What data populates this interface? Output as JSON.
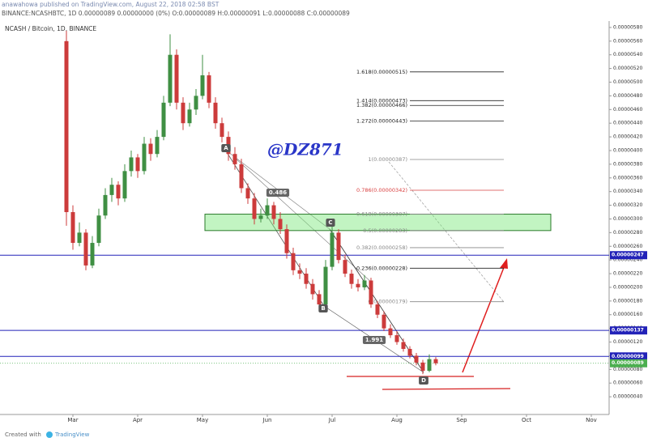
{
  "header": {
    "published": "anawahowa published on TradingView.com, August 22, 2018 02:58 BST",
    "ticker": "BINANCE:NCASHBTC, 1D 0.00000089 0.00000000 (0%) O:0.00000089 H:0.00000091 L:0.00000088 C:0.00000089"
  },
  "footer": {
    "created": "Created with",
    "brand": "TradingView"
  },
  "chart_data": {
    "type": "candlestick",
    "title": "NCASH / Bitcoin, 1D, BINANCE",
    "watermark": "@DZ871",
    "up_color": "#3f8f43",
    "down_color": "#cc3b3b",
    "categories": [
      null,
      "Mar",
      null,
      null,
      null,
      null,
      null,
      null,
      null,
      null,
      null,
      "Apr",
      null,
      null,
      null,
      null,
      null,
      null,
      null,
      null,
      null,
      "May",
      null,
      null,
      null,
      null,
      null,
      null,
      null,
      null,
      null,
      "Jun",
      null,
      null,
      null,
      null,
      null,
      null,
      null,
      null,
      null,
      "Jul",
      null,
      null,
      null,
      null,
      null,
      null,
      null,
      null,
      null,
      "Aug",
      null,
      null,
      null,
      null,
      null,
      null,
      null,
      null,
      null,
      "Sep",
      null,
      null,
      null,
      null,
      null,
      null,
      null,
      null,
      null,
      "Oct",
      null,
      null,
      null,
      null,
      null,
      null,
      null,
      null,
      null,
      "Nov",
      null,
      null
    ],
    "open": [
      5.6e-06,
      3.1e-06,
      2.65e-06,
      2.8e-06,
      2.32e-06,
      2.65e-06,
      3.05e-06,
      3.35e-06,
      3.5e-06,
      3.3e-06,
      3.7e-06,
      3.9e-06,
      3.7e-06,
      4.1e-06,
      3.95e-06,
      4.2e-06,
      4.7e-06,
      5.4e-06,
      4.7e-06,
      4.4e-06,
      4.6e-06,
      4.8e-06,
      5.1e-06,
      4.7e-06,
      4.4e-06,
      4.2e-06,
      3.95e-06,
      3.8e-06,
      3.45e-06,
      3.3e-06,
      3e-06,
      3.05e-06,
      3.2e-06,
      3e-06,
      2.85e-06,
      2.5e-06,
      2.25e-06,
      2.2e-06,
      2.05e-06,
      1.9e-06,
      1.75e-06,
      2.3e-06,
      2.8e-06,
      2.4e-06,
      2.2e-06,
      2.05e-06,
      2e-06,
      2.1e-06,
      1.75e-06,
      1.6e-06,
      1.4e-06,
      1.3e-06,
      1.2e-06,
      1.1e-06,
      1e-06,
      9e-07,
      7.8e-07,
      9.5e-07,
      null,
      null,
      null,
      null,
      null,
      null,
      null,
      null,
      null,
      null,
      null,
      null,
      null,
      null,
      null,
      null,
      null,
      null,
      null,
      null,
      null,
      null,
      null,
      null,
      null,
      null
    ],
    "high": [
      5.75e-06,
      3.2e-06,
      2.95e-06,
      2.85e-06,
      2.75e-06,
      3.15e-06,
      3.45e-06,
      3.6e-06,
      3.55e-06,
      3.8e-06,
      4e-06,
      3.95e-06,
      4.2e-06,
      4.18e-06,
      4.3e-06,
      4.8e-06,
      5.7e-06,
      5.48e-06,
      4.78e-06,
      4.7e-06,
      4.9e-06,
      5.4e-06,
      5.15e-06,
      4.78e-06,
      4.48e-06,
      4.28e-06,
      4.05e-06,
      3.88e-06,
      3.52e-06,
      3.38e-06,
      3.15e-06,
      3.3e-06,
      3.25e-06,
      3.1e-06,
      2.92e-06,
      2.58e-06,
      2.35e-06,
      2.28e-06,
      2.12e-06,
      1.96e-06,
      2.4e-06,
      3e-06,
      2.85e-06,
      2.48e-06,
      2.26e-06,
      2.12e-06,
      2.18e-06,
      2.14e-06,
      1.8e-06,
      1.65e-06,
      1.46e-06,
      1.36e-06,
      1.25e-06,
      1.14e-06,
      1.04e-06,
      9.4e-07,
      1.02e-06,
      9.8e-07,
      null,
      null,
      null,
      null,
      null,
      null,
      null,
      null,
      null,
      null,
      null,
      null,
      null,
      null,
      null,
      null,
      null,
      null,
      null,
      null,
      null,
      null,
      null,
      null,
      null,
      null
    ],
    "low": [
      2.9e-06,
      2.55e-06,
      2.6e-06,
      2.25e-06,
      2.28e-06,
      2.6e-06,
      3e-06,
      3.25e-06,
      3.2e-06,
      3.25e-06,
      3.62e-06,
      3.6e-06,
      3.65e-06,
      3.85e-06,
      3.9e-06,
      4.15e-06,
      4.65e-06,
      4.6e-06,
      4.3e-06,
      4.35e-06,
      4.52e-06,
      4.75e-06,
      4.62e-06,
      4.32e-06,
      4.12e-06,
      3.85e-06,
      3.72e-06,
      3.38e-06,
      3.22e-06,
      2.92e-06,
      2.95e-06,
      3e-06,
      2.92e-06,
      2.78e-06,
      2.42e-06,
      2.18e-06,
      2.12e-06,
      1.98e-06,
      1.82e-06,
      1.68e-06,
      1.7e-06,
      2.25e-06,
      2.35e-06,
      2.15e-06,
      1.98e-06,
      1.94e-06,
      1.96e-06,
      1.7e-06,
      1.55e-06,
      1.36e-06,
      1.26e-06,
      1.16e-06,
      1.06e-06,
      9.6e-07,
      8.6e-07,
      7.3e-07,
      7.6e-07,
      8.6e-07,
      null,
      null,
      null,
      null,
      null,
      null,
      null,
      null,
      null,
      null,
      null,
      null,
      null,
      null,
      null,
      null,
      null,
      null,
      null,
      null,
      null,
      null,
      null,
      null,
      null,
      null
    ],
    "close": [
      3.1e-06,
      2.65e-06,
      2.8e-06,
      2.32e-06,
      2.65e-06,
      3.05e-06,
      3.35e-06,
      3.5e-06,
      3.3e-06,
      3.7e-06,
      3.9e-06,
      3.7e-06,
      4.1e-06,
      3.95e-06,
      4.2e-06,
      4.7e-06,
      5.4e-06,
      4.7e-06,
      4.4e-06,
      4.6e-06,
      4.8e-06,
      5.1e-06,
      4.7e-06,
      4.4e-06,
      4.2e-06,
      3.95e-06,
      3.8e-06,
      3.45e-06,
      3.3e-06,
      3e-06,
      3.05e-06,
      3.2e-06,
      3e-06,
      2.85e-06,
      2.5e-06,
      2.25e-06,
      2.2e-06,
      2.05e-06,
      1.9e-06,
      1.75e-06,
      2.3e-06,
      2.8e-06,
      2.4e-06,
      2.2e-06,
      2.05e-06,
      2e-06,
      2.1e-06,
      1.75e-06,
      1.6e-06,
      1.4e-06,
      1.3e-06,
      1.2e-06,
      1.1e-06,
      1e-06,
      9e-07,
      7.8e-07,
      9.5e-07,
      8.9e-07,
      null,
      null,
      null,
      null,
      null,
      null,
      null,
      null,
      null,
      null,
      null,
      null,
      null,
      null,
      null,
      null,
      null,
      null,
      null,
      null,
      null,
      null,
      null,
      null,
      null,
      null
    ],
    "ylim": [
      7e-08,
      5.87e-06
    ],
    "yticks": [
      {
        "value": 4e-07,
        "label": "0.00000040"
      },
      {
        "value": 6e-07,
        "label": "0.00000060"
      },
      {
        "value": 8e-07,
        "label": "0.00000080"
      },
      {
        "value": 1e-06,
        "label": "0.00000100"
      },
      {
        "value": 1.2e-06,
        "label": "0.00000120"
      },
      {
        "value": 1.4e-06,
        "label": "0.00000140"
      },
      {
        "value": 1.6e-06,
        "label": "0.00000160"
      },
      {
        "value": 1.8e-06,
        "label": "0.00000180"
      },
      {
        "value": 2e-06,
        "label": "0.00000200"
      },
      {
        "value": 2.2e-06,
        "label": "0.00000220"
      },
      {
        "value": 2.4e-06,
        "label": "0.00000240"
      },
      {
        "value": 2.6e-06,
        "label": "0.00000260"
      },
      {
        "value": 2.8e-06,
        "label": "0.00000280"
      },
      {
        "value": 3e-06,
        "label": "0.00000300"
      },
      {
        "value": 3.2e-06,
        "label": "0.00000320"
      },
      {
        "value": 3.4e-06,
        "label": "0.00000340"
      },
      {
        "value": 3.6e-06,
        "label": "0.00000360"
      },
      {
        "value": 3.8e-06,
        "label": "0.00000380"
      },
      {
        "value": 4e-06,
        "label": "0.00000400"
      },
      {
        "value": 4.2e-06,
        "label": "0.00000420"
      },
      {
        "value": 4.4e-06,
        "label": "0.00000440"
      },
      {
        "value": 4.6e-06,
        "label": "0.00000460"
      },
      {
        "value": 4.8e-06,
        "label": "0.00000480"
      },
      {
        "value": 5e-06,
        "label": "0.00000500"
      },
      {
        "value": 5.2e-06,
        "label": "0.00000520"
      },
      {
        "value": 5.4e-06,
        "label": "0.00000540"
      },
      {
        "value": 5.6e-06,
        "label": "0.00000560"
      },
      {
        "value": 5.8e-06,
        "label": "0.00000580"
      }
    ],
    "price_lines": [
      {
        "value": 2.47e-06,
        "label": "0.00000247",
        "color": "#2222b8",
        "style": "solid"
      },
      {
        "value": 1.37e-06,
        "label": "0.00000137",
        "color": "#2222b8",
        "style": "solid"
      },
      {
        "value": 9.9e-07,
        "label": "0.00000099",
        "color": "#2222b8",
        "style": "solid"
      },
      {
        "value": 8.9e-07,
        "label": "0.00000089",
        "color": "#4caf50",
        "style": "dotted"
      }
    ],
    "fib": [
      {
        "label": "1.618(0.00000515)",
        "value": 5.15e-06,
        "color": "#222222"
      },
      {
        "label": "1.414(0.00000473)",
        "value": 4.73e-06,
        "color": "#222222"
      },
      {
        "label": "1.382(0.00000466)",
        "value": 4.66e-06,
        "color": "#222222"
      },
      {
        "label": "1.272(0.00000443)",
        "value": 4.43e-06,
        "color": "#222222"
      },
      {
        "label": "1(0.00000387)",
        "value": 3.87e-06,
        "color": "#888888"
      },
      {
        "label": "0.786(0.00000342)",
        "value": 3.42e-06,
        "color": "#d94040"
      },
      {
        "label": "0.618(0.00000307)",
        "value": 3.07e-06,
        "color": "#888888"
      },
      {
        "label": "0.5(0.00000283)",
        "value": 2.83e-06,
        "color": "#888888"
      },
      {
        "label": "0.382(0.00000258)",
        "value": 2.58e-06,
        "color": "#888888"
      },
      {
        "label": "0.236(0.00000228)",
        "value": 2.28e-06,
        "color": "#222222"
      },
      {
        "label": "0(0.00000179)",
        "value": 1.79e-06,
        "color": "#888888"
      }
    ],
    "annotations": {
      "a": "A",
      "b": "B",
      "c": "C",
      "d": "D",
      "ratio1": "0.486",
      "ratio2": "1.991"
    }
  }
}
